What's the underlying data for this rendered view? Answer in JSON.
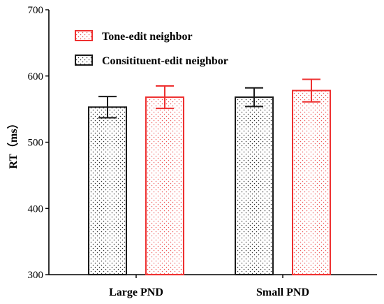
{
  "chart_data": {
    "type": "bar",
    "categories": [
      "Large PND",
      "Small PND"
    ],
    "series": [
      {
        "name": "Consitituent-edit neighbor",
        "values": [
          553,
          568
        ],
        "error": [
          16,
          14
        ],
        "color": "#1a1a1a"
      },
      {
        "name": "Tone-edit neighbor",
        "values": [
          568,
          578
        ],
        "error": [
          17,
          17
        ],
        "color": "#ee3030"
      }
    ],
    "legend_order": [
      1,
      0
    ],
    "legend_position": "top-left",
    "title": "",
    "xlabel": "",
    "ylabel": "RT（ms）",
    "ylim": [
      300,
      700
    ],
    "yticks": [
      300,
      400,
      500,
      600,
      700
    ],
    "grid": false,
    "bar_fill": "dotted"
  }
}
